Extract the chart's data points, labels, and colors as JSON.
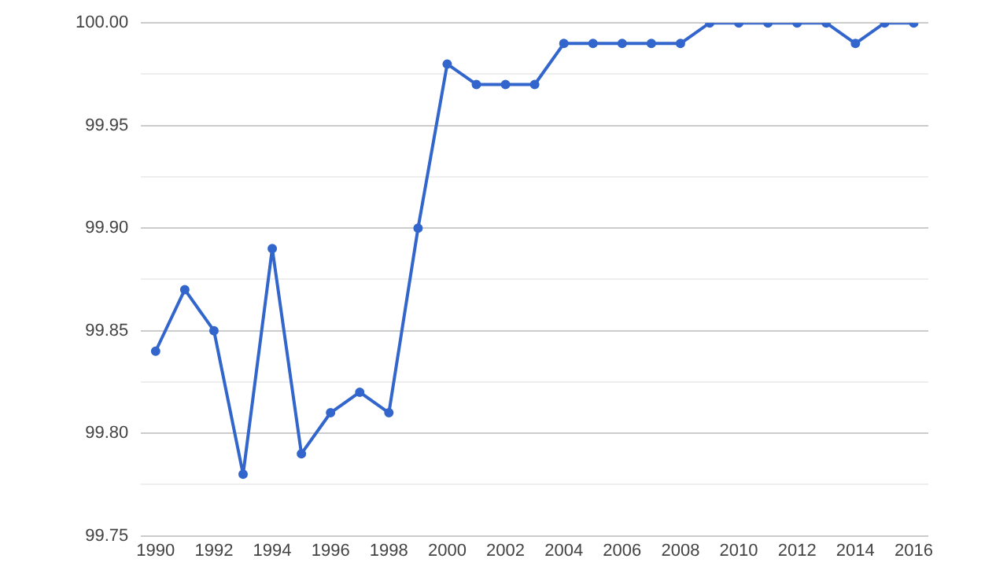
{
  "chart_data": {
    "type": "line",
    "x": [
      1990,
      1991,
      1992,
      1993,
      1994,
      1995,
      1996,
      1997,
      1998,
      1999,
      2000,
      2001,
      2002,
      2003,
      2004,
      2005,
      2006,
      2007,
      2008,
      2009,
      2010,
      2011,
      2012,
      2013,
      2014,
      2015,
      2016
    ],
    "series": [
      {
        "color": "#3366cc",
        "values": [
          99.84,
          99.87,
          99.85,
          99.78,
          99.89,
          99.79,
          99.81,
          99.82,
          99.81,
          99.9,
          99.98,
          99.97,
          99.97,
          99.97,
          99.99,
          99.99,
          99.99,
          99.99,
          99.99,
          100,
          100,
          100,
          100,
          100,
          99.99,
          100,
          100
        ]
      }
    ],
    "xlim": [
      1989.5,
      2016.5
    ],
    "xticks": [
      1990,
      1992,
      1994,
      1996,
      1998,
      2000,
      2002,
      2004,
      2006,
      2008,
      2010,
      2012,
      2014,
      2016
    ],
    "ylim": [
      99.75,
      100
    ],
    "yticks": [
      {
        "value": 99.75,
        "label": "99.75"
      },
      {
        "value": 99.775,
        "label": null
      },
      {
        "value": 99.8,
        "label": "99.80"
      },
      {
        "value": 99.825,
        "label": null
      },
      {
        "value": 99.85,
        "label": "99.85"
      },
      {
        "value": 99.875,
        "label": null
      },
      {
        "value": 99.9,
        "label": "99.90"
      },
      {
        "value": 99.925,
        "label": null
      },
      {
        "value": 99.95,
        "label": "99.95"
      },
      {
        "value": 99.975,
        "label": null
      },
      {
        "value": 100,
        "label": "100.00"
      }
    ],
    "grid": "y",
    "legend": false,
    "marker": "circle",
    "line_style": "solid"
  }
}
